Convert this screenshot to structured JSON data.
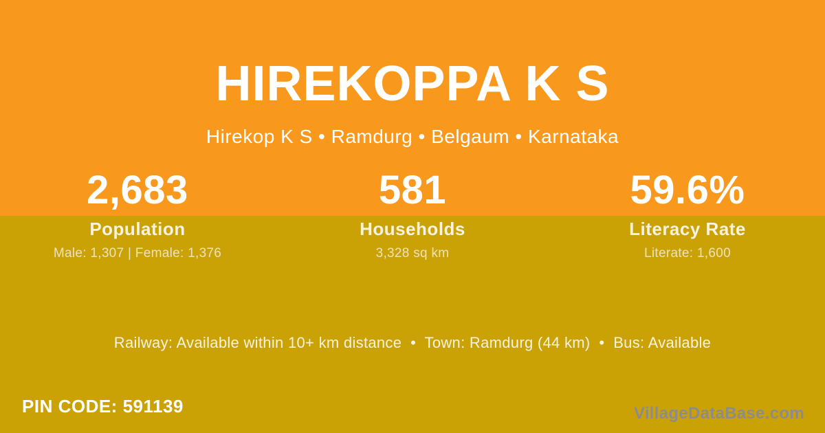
{
  "page": {
    "title": "HIREKOPPA K S",
    "subtitle": "Hirekop K S • Ramdurg • Belgaum • Karnataka",
    "stats": [
      {
        "value": "2,683",
        "label": "Population",
        "detail": "Male: 1,307 | Female: 1,376"
      },
      {
        "value": "581",
        "label": "Households",
        "detail": "3,328 sq km"
      },
      {
        "value": "59.6%",
        "label": "Literacy Rate",
        "detail": "Literate: 1,600"
      }
    ],
    "info_line": "Railway: Available within 10+ km distance  •  Town: Ramdurg (44 km)  •  Bus: Available",
    "pin_code": "PIN CODE: 591139",
    "watermark": "VillageDataBase.com",
    "colors": {
      "orange": "#F8981D",
      "olive": "#CBA206",
      "white": "#FFFFFF",
      "cream": "#F8F2DF",
      "khaki": "#EDE2B9",
      "watermark_gray": "#8C8C8C"
    }
  }
}
